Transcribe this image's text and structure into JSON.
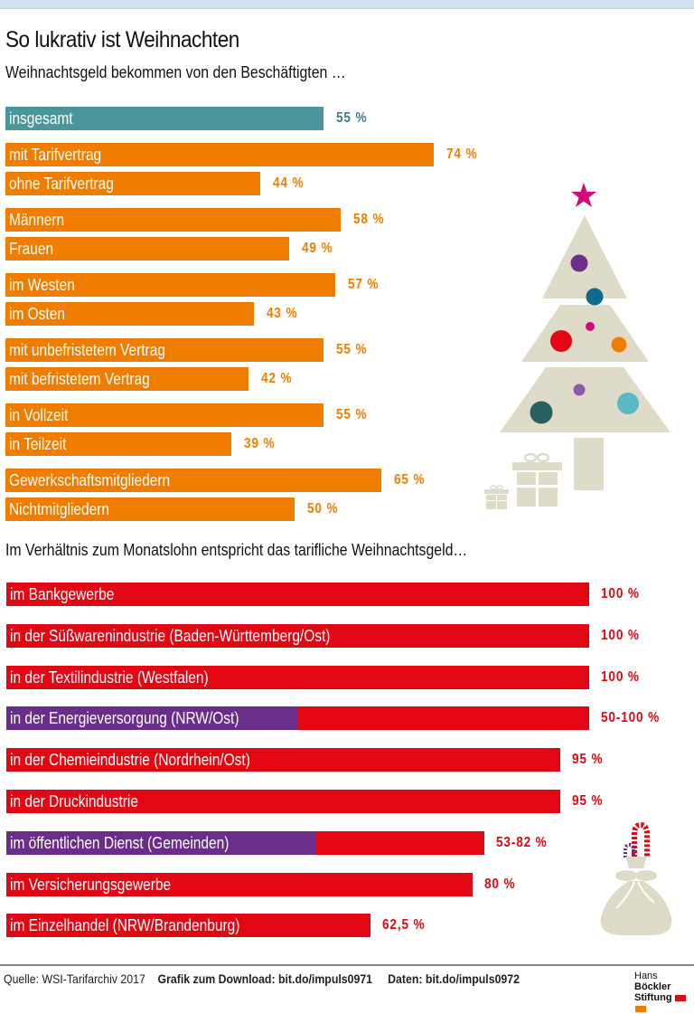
{
  "header": {
    "title": "So lukrativ ist Weihnachten",
    "subtitle": "Weihnachtsgeld bekommen von den Beschäftigten …"
  },
  "section2": {
    "subtitle": "Im Verhältnis zum Monatslohn entspricht das tarifliche Weihnachtsgeld…"
  },
  "colors": {
    "teal": "#4a969c",
    "teal_text": "#3d7d8b",
    "orange": "#f07d00",
    "red": "#e30613",
    "purple": "#6b2d8b",
    "beige": "#dedbc8",
    "star": "#d4087f"
  },
  "chart_data": [
    {
      "type": "bar",
      "orientation": "horizontal",
      "title": "Weihnachtsgeld bekommen von den Beschäftigten …",
      "unit": "%",
      "categories": [
        "insgesamt",
        "mit Tarifvertrag",
        "ohne Tarifvertrag",
        "Männern",
        "Frauen",
        "im Westen",
        "im Osten",
        "mit unbefristetem Vertrag",
        "mit befristetem Vertrag",
        "in Vollzeit",
        "in Teilzeit",
        "Gewerkschaftsmitgliedern",
        "Nichtmitgliedern"
      ],
      "values": [
        55,
        74,
        44,
        58,
        49,
        57,
        43,
        55,
        42,
        55,
        39,
        65,
        50
      ],
      "labels": [
        "55 %",
        "74 %",
        "44 %",
        "58 %",
        "49 %",
        "57 %",
        "43 %",
        "55 %",
        "42 %",
        "55 %",
        "39 %",
        "65 %",
        "50 %"
      ],
      "groups": [
        [
          0
        ],
        [
          1,
          2
        ],
        [
          3,
          4
        ],
        [
          5,
          6
        ],
        [
          7,
          8
        ],
        [
          9,
          10
        ],
        [
          11,
          12
        ]
      ],
      "highlight": [
        0
      ],
      "xlim": [
        0,
        100
      ]
    },
    {
      "type": "bar",
      "orientation": "horizontal",
      "title": "Im Verhältnis zum Monatslohn entspricht das tarifliche Weihnachtsgeld…",
      "unit": "%",
      "categories": [
        "im Bankgewerbe",
        "in der Süßwarenindustrie (Baden-Württemberg/Ost)",
        "in der Textilindustrie (Westfalen)",
        "in der Energieversorgung (NRW/Ost)",
        "in der Chemieindustrie (Nordrhein/Ost)",
        "in der Druckindustrie",
        "im öffentlichen Dienst (Gemeinden)",
        "im Versicherungsgewerbe",
        "im Einzelhandel (NRW/Brandenburg)"
      ],
      "values_min": [
        null,
        null,
        null,
        50,
        null,
        null,
        53,
        null,
        null
      ],
      "values": [
        100,
        100,
        100,
        100,
        95,
        95,
        82,
        80,
        62.5
      ],
      "labels": [
        "100 %",
        "100 %",
        "100 %",
        "50-100 %",
        "95 %",
        "95 %",
        "53-82 %",
        "80 %",
        "62,5 %"
      ],
      "xlim": [
        0,
        100
      ]
    }
  ],
  "footer": {
    "source": "Quelle: WSI-Tarifarchiv 2017",
    "download": "Grafik zum Download: bit.do/impuls0971",
    "data": "Daten: bit.do/impuls0972",
    "logo_line1_a": "Hans",
    "logo_line1_b": "Böckler",
    "logo_line2": "Stiftung"
  },
  "decorations": [
    "christmas-tree-icon",
    "star-icon",
    "gift-icon",
    "gift-small-icon",
    "sack-icon",
    "candy-cane-icon"
  ]
}
